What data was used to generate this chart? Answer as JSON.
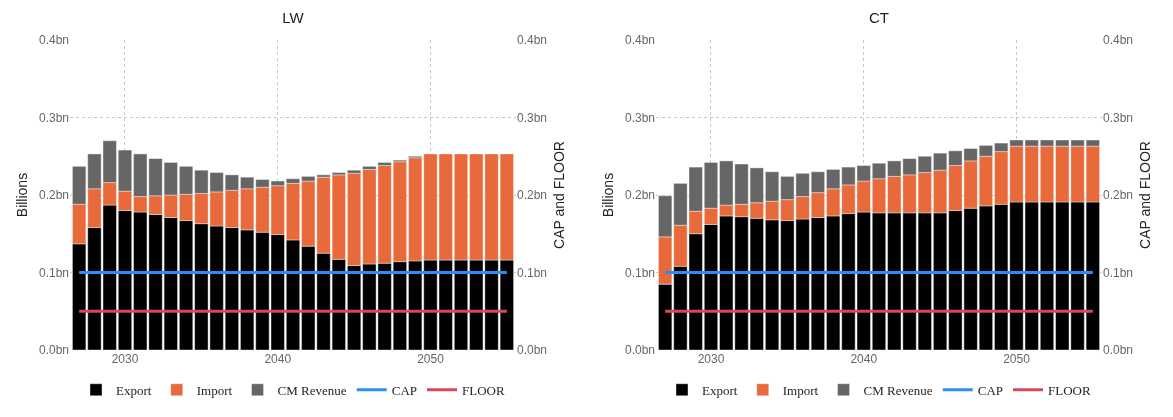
{
  "chart_data": [
    {
      "type": "bar",
      "title": "LW",
      "ylabel": "Billions",
      "y2label": "CAP and FLOOR",
      "stacked": true,
      "grid": true,
      "legend": "bottom",
      "x": [
        2027,
        2028,
        2029,
        2030,
        2031,
        2032,
        2033,
        2034,
        2035,
        2036,
        2037,
        2038,
        2039,
        2040,
        2041,
        2042,
        2043,
        2044,
        2045,
        2046,
        2047,
        2048,
        2049,
        2050,
        2051,
        2052,
        2053,
        2054,
        2055
      ],
      "xlim": [
        2026.4,
        2055.6
      ],
      "xticks": [
        2030,
        2040,
        2050
      ],
      "ylim": [
        0,
        0.4
      ],
      "yticks": [
        {
          "value": 0,
          "label": "0.0bn"
        },
        {
          "value": 0.1,
          "label": "0.1bn"
        },
        {
          "value": 0.2,
          "label": "0.2bn"
        },
        {
          "value": 0.3,
          "label": "0.3bn"
        },
        {
          "value": 0.4,
          "label": "0.4bn"
        }
      ],
      "y2lim": [
        0,
        0.4
      ],
      "y2ticks": [
        {
          "value": 0,
          "label": "0.0bn"
        },
        {
          "value": 0.1,
          "label": "0.1bn"
        },
        {
          "value": 0.2,
          "label": "0.2bn"
        },
        {
          "value": 0.3,
          "label": "0.3bn"
        },
        {
          "value": 0.4,
          "label": "0.4bn"
        }
      ],
      "series": [
        {
          "name": "Export",
          "color": "#000000",
          "values": [
            0.137,
            0.158,
            0.187,
            0.18,
            0.178,
            0.175,
            0.171,
            0.167,
            0.163,
            0.16,
            0.158,
            0.155,
            0.152,
            0.149,
            0.142,
            0.134,
            0.125,
            0.117,
            0.109,
            0.111,
            0.112,
            0.114,
            0.115,
            0.116,
            0.116,
            0.116,
            0.116,
            0.116,
            0.116
          ]
        },
        {
          "name": "Import",
          "color": "#e8693a",
          "values": [
            0.051,
            0.05,
            0.029,
            0.025,
            0.02,
            0.024,
            0.029,
            0.034,
            0.039,
            0.044,
            0.048,
            0.053,
            0.058,
            0.063,
            0.073,
            0.084,
            0.098,
            0.109,
            0.119,
            0.122,
            0.126,
            0.129,
            0.133,
            0.137,
            0.137,
            0.137,
            0.137,
            0.137,
            0.137
          ]
        },
        {
          "name": "CM Revenue",
          "color": "#666666",
          "values": [
            0.049,
            0.045,
            0.054,
            0.053,
            0.055,
            0.048,
            0.042,
            0.036,
            0.03,
            0.025,
            0.02,
            0.015,
            0.01,
            0.006,
            0.006,
            0.006,
            0.003,
            0.003,
            0.004,
            0.004,
            0.004,
            0.002,
            0.002,
            0,
            0,
            0,
            0,
            0,
            0
          ]
        },
        {
          "name": "CAP",
          "type": "line",
          "axis": "y2",
          "color": "#2b8ff0",
          "values": [
            0.1,
            0.1,
            0.1,
            0.1,
            0.1,
            0.1,
            0.1,
            0.1,
            0.1,
            0.1,
            0.1,
            0.1,
            0.1,
            0.1,
            0.1,
            0.1,
            0.1,
            0.1,
            0.1,
            0.1,
            0.1,
            0.1,
            0.1,
            0.1,
            0.1,
            0.1,
            0.1,
            0.1,
            0.1
          ]
        },
        {
          "name": "FLOOR",
          "type": "line",
          "axis": "y2",
          "color": "#d9475a",
          "values": [
            0.05,
            0.05,
            0.05,
            0.05,
            0.05,
            0.05,
            0.05,
            0.05,
            0.05,
            0.05,
            0.05,
            0.05,
            0.05,
            0.05,
            0.05,
            0.05,
            0.05,
            0.05,
            0.05,
            0.05,
            0.05,
            0.05,
            0.05,
            0.05,
            0.05,
            0.05,
            0.05,
            0.05,
            0.05
          ]
        }
      ]
    },
    {
      "type": "bar",
      "title": "CT",
      "ylabel": "Billions",
      "y2label": "CAP and FLOOR",
      "stacked": true,
      "grid": true,
      "legend": "bottom",
      "x": [
        2027,
        2028,
        2029,
        2030,
        2031,
        2032,
        2033,
        2034,
        2035,
        2036,
        2037,
        2038,
        2039,
        2040,
        2041,
        2042,
        2043,
        2044,
        2045,
        2046,
        2047,
        2048,
        2049,
        2050,
        2051,
        2052,
        2053,
        2054,
        2055
      ],
      "xlim": [
        2026.4,
        2055.6
      ],
      "xticks": [
        2030,
        2040,
        2050
      ],
      "ylim": [
        0,
        0.4
      ],
      "yticks": [
        {
          "value": 0,
          "label": "0.0bn"
        },
        {
          "value": 0.1,
          "label": "0.1bn"
        },
        {
          "value": 0.2,
          "label": "0.2bn"
        },
        {
          "value": 0.3,
          "label": "0.3bn"
        },
        {
          "value": 0.4,
          "label": "0.4bn"
        }
      ],
      "y2lim": [
        0,
        0.4
      ],
      "y2ticks": [
        {
          "value": 0,
          "label": "0.0bn"
        },
        {
          "value": 0.1,
          "label": "0.1bn"
        },
        {
          "value": 0.2,
          "label": "0.2bn"
        },
        {
          "value": 0.3,
          "label": "0.3bn"
        },
        {
          "value": 0.4,
          "label": "0.4bn"
        }
      ],
      "series": [
        {
          "name": "Export",
          "color": "#000000",
          "values": [
            0.085,
            0.108,
            0.15,
            0.162,
            0.173,
            0.172,
            0.17,
            0.168,
            0.167,
            0.169,
            0.171,
            0.173,
            0.176,
            0.178,
            0.177,
            0.177,
            0.177,
            0.177,
            0.177,
            0.18,
            0.183,
            0.186,
            0.188,
            0.191,
            0.191,
            0.191,
            0.191,
            0.191,
            0.191
          ]
        },
        {
          "name": "Import",
          "color": "#e8693a",
          "values": [
            0.061,
            0.053,
            0.029,
            0.021,
            0.014,
            0.016,
            0.02,
            0.024,
            0.027,
            0.029,
            0.032,
            0.035,
            0.037,
            0.04,
            0.044,
            0.047,
            0.049,
            0.052,
            0.055,
            0.058,
            0.061,
            0.064,
            0.068,
            0.072,
            0.072,
            0.072,
            0.072,
            0.072,
            0.072
          ]
        },
        {
          "name": "CM Revenue",
          "color": "#666666",
          "values": [
            0.053,
            0.054,
            0.057,
            0.059,
            0.057,
            0.052,
            0.045,
            0.038,
            0.03,
            0.03,
            0.027,
            0.025,
            0.023,
            0.02,
            0.02,
            0.02,
            0.021,
            0.021,
            0.022,
            0.019,
            0.016,
            0.014,
            0.011,
            0.008,
            0.008,
            0.008,
            0.008,
            0.008,
            0.008
          ]
        },
        {
          "name": "CAP",
          "type": "line",
          "axis": "y2",
          "color": "#2b8ff0",
          "values": [
            0.1,
            0.1,
            0.1,
            0.1,
            0.1,
            0.1,
            0.1,
            0.1,
            0.1,
            0.1,
            0.1,
            0.1,
            0.1,
            0.1,
            0.1,
            0.1,
            0.1,
            0.1,
            0.1,
            0.1,
            0.1,
            0.1,
            0.1,
            0.1,
            0.1,
            0.1,
            0.1,
            0.1,
            0.1
          ]
        },
        {
          "name": "FLOOR",
          "type": "line",
          "axis": "y2",
          "color": "#d9475a",
          "values": [
            0.05,
            0.05,
            0.05,
            0.05,
            0.05,
            0.05,
            0.05,
            0.05,
            0.05,
            0.05,
            0.05,
            0.05,
            0.05,
            0.05,
            0.05,
            0.05,
            0.05,
            0.05,
            0.05,
            0.05,
            0.05,
            0.05,
            0.05,
            0.05,
            0.05,
            0.05,
            0.05,
            0.05,
            0.05
          ]
        }
      ]
    }
  ]
}
